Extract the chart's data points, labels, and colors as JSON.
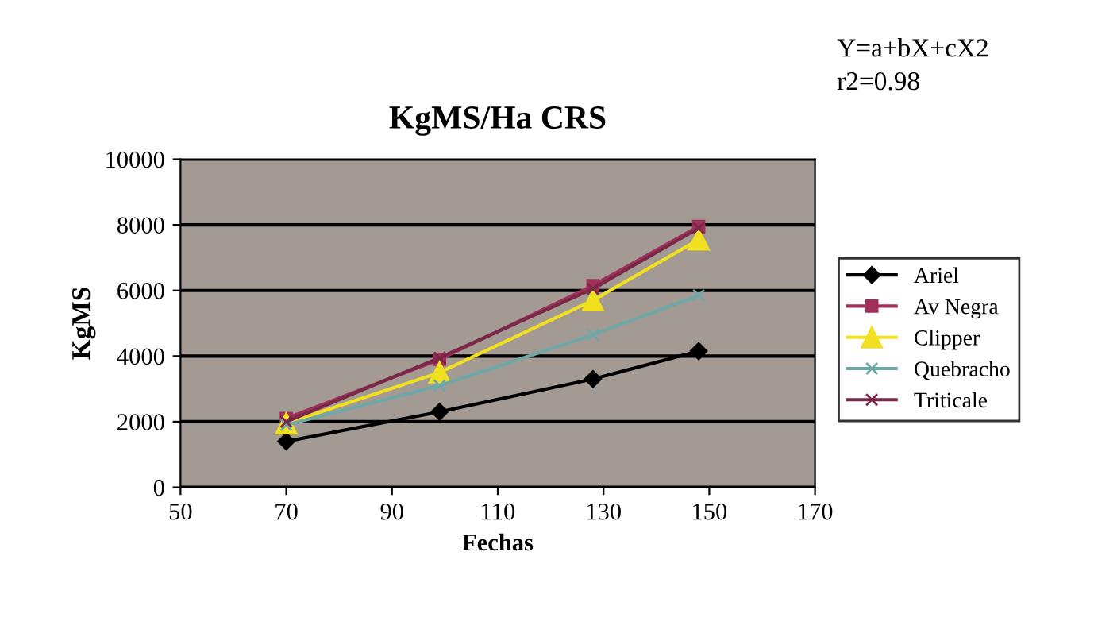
{
  "chart_data": {
    "type": "line",
    "title": "KgMS/Ha CRS",
    "xlabel": "Fechas",
    "ylabel": "KgMS",
    "annotations": [
      "Y=a+bX+cX2\nr2=0.98"
    ],
    "x": [
      70,
      99,
      128,
      148
    ],
    "series": [
      {
        "name": "Ariel",
        "color": "#000000",
        "marker": "diamond",
        "values": [
          1400,
          2300,
          3300,
          4150
        ]
      },
      {
        "name": "Av Negra",
        "color": "#a0305a",
        "marker": "square",
        "values": [
          2100,
          3900,
          6150,
          7950
        ]
      },
      {
        "name": "Clipper",
        "color": "#f0e020",
        "marker": "triangle",
        "values": [
          1950,
          3500,
          5700,
          7550
        ]
      },
      {
        "name": "Quebracho",
        "color": "#70a8a8",
        "marker": "cross",
        "values": [
          1900,
          3100,
          4650,
          5850
        ]
      },
      {
        "name": "Triticale",
        "color": "#7a2848",
        "marker": "cross",
        "values": [
          2000,
          3950,
          6050,
          7900
        ]
      }
    ],
    "xlim": [
      50,
      170
    ],
    "xticks": [
      50,
      70,
      90,
      110,
      130,
      150,
      170
    ],
    "ylim": [
      0,
      10000
    ],
    "yticks": [
      0,
      2000,
      4000,
      6000,
      8000,
      10000
    ],
    "grid": "y",
    "legend": "right"
  }
}
